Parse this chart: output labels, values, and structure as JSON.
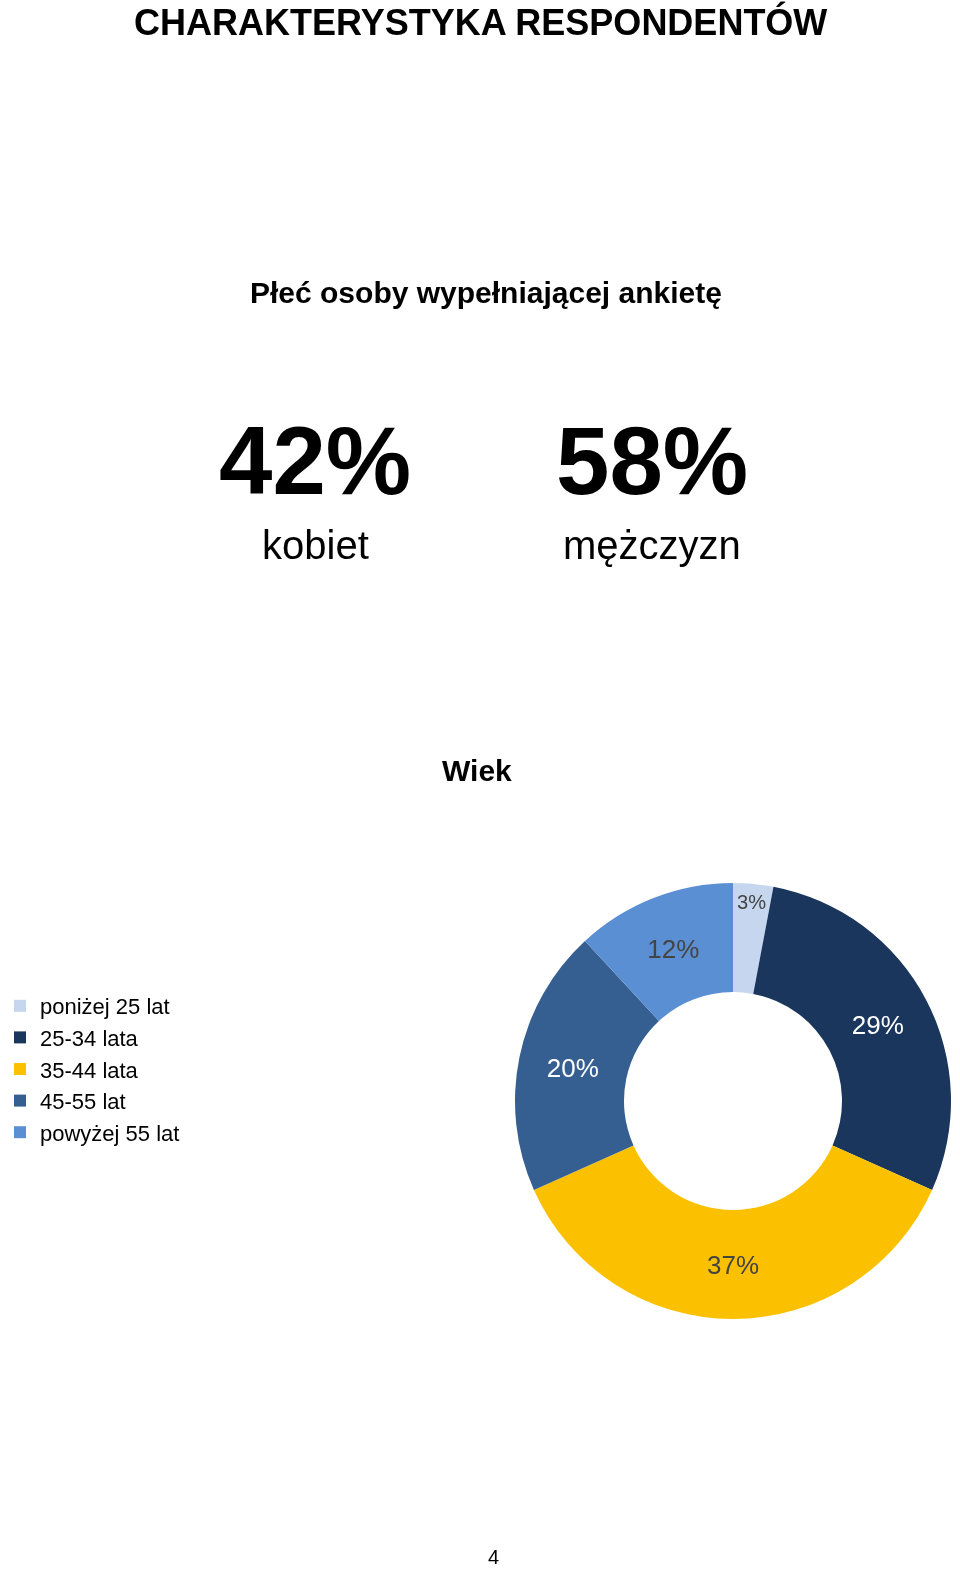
{
  "chart_data": [
    {
      "type": "other",
      "title": "Płeć osoby wypełniającej ankietę",
      "annotations": [
        "CHARAKTERYSTYKA RESPONDENTÓW",
        "42%",
        "kobiet",
        "58%",
        "mężczyzn"
      ]
    },
    {
      "type": "donut",
      "title": "Wiek",
      "categories": [
        "poniżej 25 lat",
        "25-34 lata",
        "35-44 lata",
        "45-55 lat",
        "powyżej 55 lat"
      ],
      "values": [
        3,
        29,
        37,
        20,
        12
      ],
      "value_labels": [
        "3%",
        "29%",
        "37%",
        "20%",
        "12%"
      ],
      "colors": [
        "#c5d6ee",
        "#1a365d",
        "#fbc100",
        "#355f91",
        "#5b8fd4"
      ],
      "legend": "left",
      "annotations": [
        "4"
      ]
    }
  ]
}
